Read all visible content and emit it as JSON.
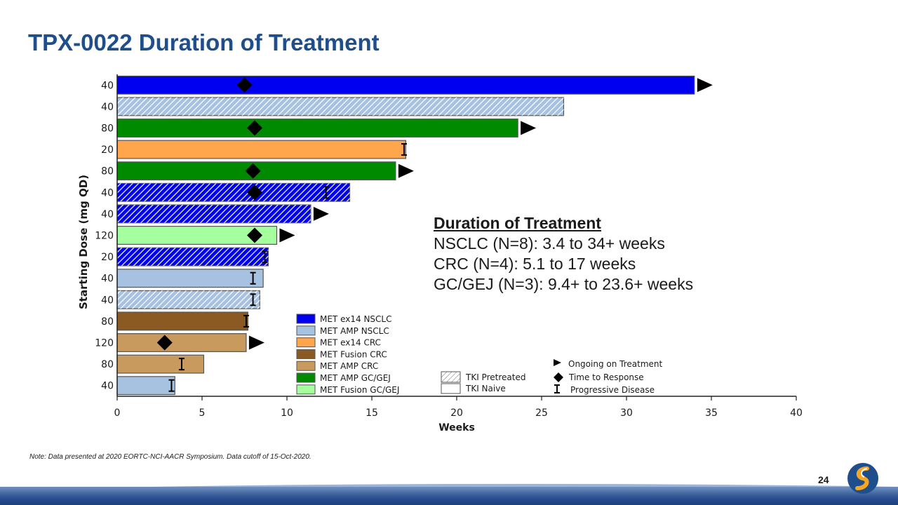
{
  "page": {
    "title": "TPX-0022 Duration of Treatment",
    "note": "Note: Data presented at 2020 EORTC-NCI-AACR Symposium. Data cutoff of 15-Oct-2020.",
    "page_number": "24"
  },
  "summary": {
    "heading": "Duration of Treatment",
    "lines": [
      "NSCLC (N=8): 3.4 to 34+ weeks",
      "CRC (N=4): 5.1 to 17 weeks",
      "GC/GEJ (N=3): 9.4+ to 23.6+ weeks"
    ]
  },
  "colors": {
    "title": "#1f4e8c",
    "MET ex14 NSCLC": "#0000f0",
    "MET AMP NSCLC": "#a7c1e0",
    "MET ex14 CRC": "#ffa64d",
    "MET Fusion CRC": "#8b5a23",
    "MET AMP CRC": "#c99a5e",
    "MET AMP GC/GEJ": "#008a00",
    "MET Fusion GC/GEJ": "#a6ff9e"
  },
  "chart_data": {
    "type": "bar",
    "orientation": "horizontal",
    "title": "",
    "xlabel": "Weeks",
    "ylabel": "Starting Dose (mg QD)",
    "xlim": [
      0,
      40
    ],
    "xticks": [
      0,
      5,
      10,
      15,
      20,
      25,
      30,
      35,
      40
    ],
    "grid": false,
    "categories": [
      "40",
      "40",
      "80",
      "20",
      "80",
      "40",
      "40",
      "120",
      "20",
      "40",
      "40",
      "80",
      "120",
      "80",
      "40"
    ],
    "patients": [
      {
        "dose": "40",
        "duration": 34.0,
        "group": "MET ex14 NSCLC",
        "tki": "naive",
        "ongoing": true,
        "response": 7.5,
        "progression": null
      },
      {
        "dose": "40",
        "duration": 26.3,
        "group": "MET AMP NSCLC",
        "tki": "pretreated",
        "ongoing": false,
        "response": null,
        "progression": null
      },
      {
        "dose": "80",
        "duration": 23.6,
        "group": "MET AMP GC/GEJ",
        "tki": "naive",
        "ongoing": true,
        "response": 8.1,
        "progression": null
      },
      {
        "dose": "20",
        "duration": 17.0,
        "group": "MET ex14 CRC",
        "tki": "naive",
        "ongoing": false,
        "response": null,
        "progression": 16.9
      },
      {
        "dose": "80",
        "duration": 16.4,
        "group": "MET AMP GC/GEJ",
        "tki": "naive",
        "ongoing": true,
        "response": 8.0,
        "progression": null
      },
      {
        "dose": "40",
        "duration": 13.7,
        "group": "MET ex14 NSCLC",
        "tki": "pretreated",
        "ongoing": false,
        "response": 8.1,
        "progression": 12.3
      },
      {
        "dose": "40",
        "duration": 11.4,
        "group": "MET ex14 NSCLC",
        "tki": "pretreated",
        "ongoing": true,
        "response": null,
        "progression": null
      },
      {
        "dose": "120",
        "duration": 9.4,
        "group": "MET Fusion GC/GEJ",
        "tki": "naive",
        "ongoing": true,
        "response": 8.1,
        "progression": null
      },
      {
        "dose": "20",
        "duration": 8.9,
        "group": "MET ex14 NSCLC",
        "tki": "pretreated",
        "ongoing": false,
        "response": null,
        "progression": 8.7
      },
      {
        "dose": "40",
        "duration": 8.6,
        "group": "MET AMP NSCLC",
        "tki": "naive",
        "ongoing": false,
        "response": null,
        "progression": 8.0
      },
      {
        "dose": "40",
        "duration": 8.4,
        "group": "MET AMP NSCLC",
        "tki": "pretreated",
        "ongoing": false,
        "response": null,
        "progression": 8.0
      },
      {
        "dose": "80",
        "duration": 7.7,
        "group": "MET Fusion CRC",
        "tki": "naive",
        "ongoing": false,
        "response": null,
        "progression": 7.6
      },
      {
        "dose": "120",
        "duration": 7.6,
        "group": "MET AMP CRC",
        "tki": "naive",
        "ongoing": true,
        "response": 2.8,
        "progression": null
      },
      {
        "dose": "80",
        "duration": 5.1,
        "group": "MET AMP CRC",
        "tki": "naive",
        "ongoing": false,
        "response": null,
        "progression": 3.8
      },
      {
        "dose": "40",
        "duration": 3.4,
        "group": "MET AMP NSCLC",
        "tki": "naive",
        "ongoing": false,
        "response": null,
        "progression": 3.2
      }
    ],
    "legend_groups": [
      "MET ex14 NSCLC",
      "MET AMP NSCLC",
      "MET ex14 CRC",
      "MET Fusion CRC",
      "MET AMP CRC",
      "MET AMP GC/GEJ",
      "MET Fusion GC/GEJ"
    ],
    "legend_tki": {
      "pretreated": "TKI Pretreated",
      "naive": "TKI Naive"
    },
    "legend_markers": {
      "ongoing": "Ongoing on Treatment",
      "response": "Time to Response",
      "progression": "Progressive Disease"
    }
  }
}
